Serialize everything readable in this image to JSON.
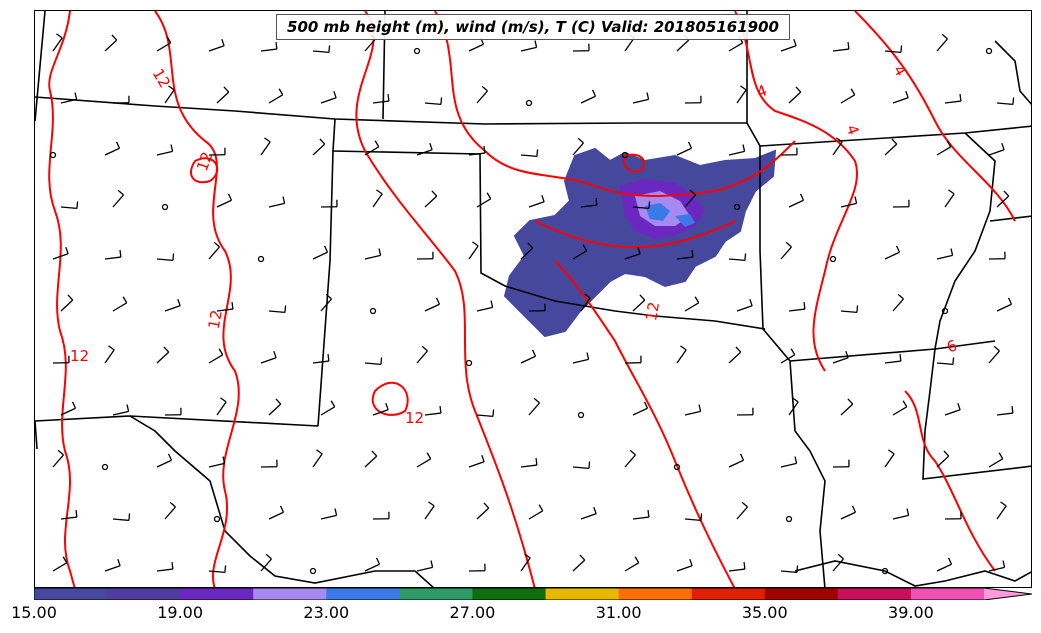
{
  "title": "500 mb height (m), wind (m/s), T (C) Valid: 201805161900",
  "contour_labels": [
    "12",
    "12",
    "12",
    "12",
    "12",
    "12",
    "4",
    "4",
    "4",
    "6"
  ],
  "colorbar": {
    "min": 15.0,
    "max": 43.0,
    "step": 2.0,
    "colors": [
      "#45489c",
      "#503c9e",
      "#6a28c0",
      "#a68af0",
      "#3a7ae8",
      "#2e9a64",
      "#0c6e0c",
      "#e6b800",
      "#ff6e00",
      "#e02000",
      "#a00000",
      "#c8105a",
      "#f050b0",
      "#ff9ad8"
    ],
    "tick_labels": [
      "15.00",
      "19.00",
      "23.00",
      "27.00",
      "31.00",
      "35.00",
      "39.00"
    ]
  },
  "colors": {
    "temperature_contour": "#ff0000",
    "state_border": "#000000",
    "wind_barb": "#000000"
  }
}
